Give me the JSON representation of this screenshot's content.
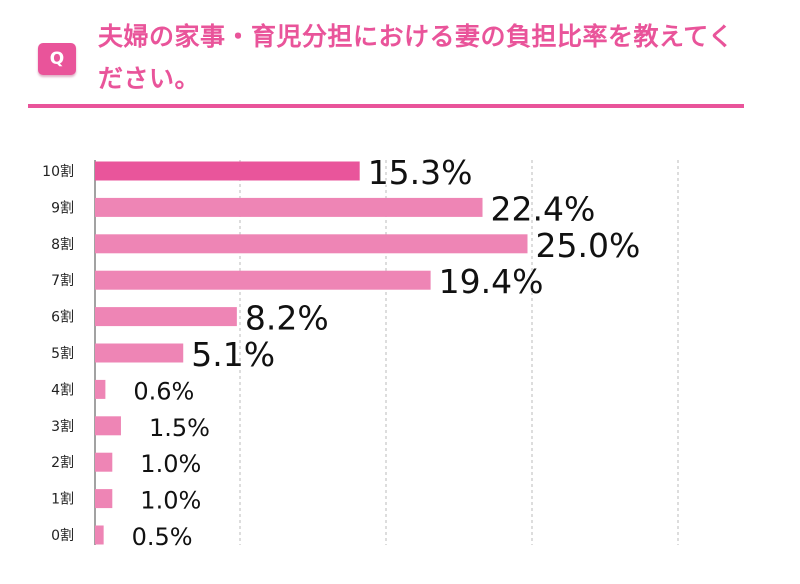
{
  "header": {
    "badge": "Q",
    "title": "夫婦の家事・育児分担における妻の負担比率を教えてください。"
  },
  "colors": {
    "accent": "#e9549a",
    "bar_top": "#e9559b",
    "bar": "#ee85b5",
    "grid": "#bbbbbb"
  },
  "chart_data": {
    "type": "bar",
    "orientation": "horizontal",
    "categories": [
      "10割",
      "9割",
      "8割",
      "7割",
      "6割",
      "5割",
      "4割",
      "3割",
      "2割",
      "1割",
      "0割"
    ],
    "values": [
      15.3,
      22.4,
      25.0,
      19.4,
      8.2,
      5.1,
      0.6,
      1.5,
      1.0,
      1.0,
      0.5
    ],
    "labels": [
      "15.3%",
      "22.4%",
      "25.0%",
      "19.4%",
      "8.2%",
      "5.1%",
      "0.6%",
      "1.5%",
      "1.0%",
      "1.0%",
      "0.5%"
    ],
    "xlim": [
      0,
      33.3
    ],
    "grid": "vertical dashed",
    "title": "",
    "xlabel": "",
    "ylabel": ""
  }
}
